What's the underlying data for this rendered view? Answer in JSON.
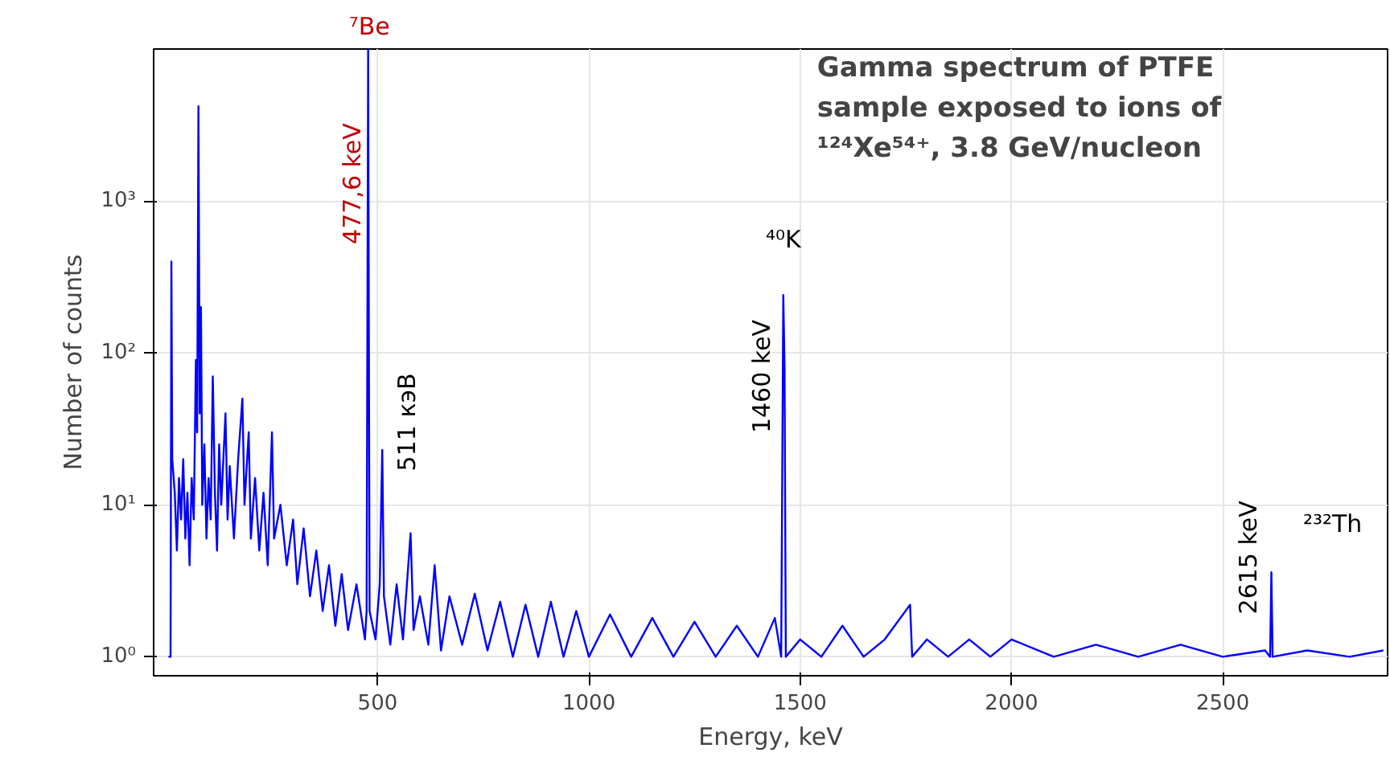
{
  "chart_data": {
    "type": "line",
    "title": "Gamma spectrum of PTFE sample exposed to ions of ¹²⁴Xe⁵⁴⁺, 3.8 GeV/nucleon",
    "xlabel": "Energy, keV",
    "ylabel": "Number of counts",
    "x": [
      5,
      10,
      12,
      14,
      20,
      25,
      30,
      35,
      40,
      45,
      50,
      55,
      60,
      65,
      70,
      73,
      76,
      79,
      82,
      85,
      90,
      95,
      100,
      105,
      110,
      115,
      120,
      125,
      130,
      140,
      145,
      150,
      160,
      170,
      180,
      185,
      195,
      200,
      210,
      220,
      230,
      240,
      250,
      255,
      270,
      285,
      300,
      310,
      325,
      340,
      355,
      370,
      385,
      400,
      415,
      430,
      450,
      470,
      474,
      477.6,
      481,
      495,
      505,
      511,
      515,
      530,
      545,
      560,
      578,
      585,
      600,
      620,
      635,
      650,
      670,
      700,
      730,
      760,
      790,
      820,
      850,
      880,
      910,
      940,
      970,
      1000,
      1050,
      1100,
      1150,
      1200,
      1250,
      1300,
      1350,
      1400,
      1440,
      1455,
      1460,
      1463,
      1466,
      1500,
      1550,
      1600,
      1650,
      1700,
      1760,
      1765,
      1800,
      1850,
      1900,
      1950,
      2000,
      2100,
      2200,
      2300,
      2400,
      2500,
      2600,
      2612,
      2615,
      2618,
      2700,
      2800,
      2880
    ],
    "series": [
      {
        "color": "#0000ff",
        "values": [
          1,
          1,
          400,
          20,
          12,
          5,
          15,
          8,
          20,
          6,
          12,
          4,
          15,
          8,
          90,
          30,
          4200,
          40,
          200,
          10,
          25,
          6,
          15,
          8,
          70,
          12,
          5,
          25,
          10,
          40,
          8,
          18,
          6,
          20,
          50,
          10,
          30,
          6,
          15,
          5,
          12,
          4,
          30,
          6,
          10,
          4,
          8,
          3,
          7,
          2.5,
          5,
          2,
          4,
          1.6,
          3.5,
          1.5,
          3,
          1.3,
          2,
          10000,
          2,
          1.3,
          3,
          23,
          2.5,
          1.2,
          3,
          1.3,
          6.5,
          1.5,
          2.5,
          1.2,
          4,
          1.1,
          2.5,
          1.2,
          2.6,
          1.1,
          2.3,
          1.0,
          2.2,
          1.0,
          2.3,
          1.0,
          2.0,
          1.0,
          1.9,
          1.0,
          1.8,
          1.0,
          1.7,
          1.0,
          1.6,
          1.0,
          1.8,
          1.0,
          240,
          80,
          1.0,
          1.3,
          1.0,
          1.6,
          1.0,
          1.3,
          2.2,
          1.0,
          1.3,
          1.0,
          1.3,
          1.0,
          1.3,
          1.0,
          1.2,
          1.0,
          1.2,
          1.0,
          1.1,
          1.0,
          3.6,
          1.0,
          1.1,
          1.0,
          1.1
        ]
      }
    ],
    "log": true,
    "xlim": [
      -30,
      2890
    ],
    "ylim": [
      0.75,
      10000
    ],
    "xticks": [
      500,
      1000,
      1500,
      2000,
      2500
    ],
    "yticks": [
      {
        "value": 1,
        "label": "10⁰"
      },
      {
        "value": 10,
        "label": "10¹"
      },
      {
        "value": 100,
        "label": "10²"
      },
      {
        "value": 1000,
        "label": "10³"
      }
    ],
    "grid": true,
    "marker": "none",
    "line_style": "solid",
    "annotations": [
      "⁷Be",
      "477,6 keV",
      "511 кэВ",
      "⁴⁰K",
      "1460 keV",
      "2615 keV",
      "²³²Th"
    ]
  }
}
